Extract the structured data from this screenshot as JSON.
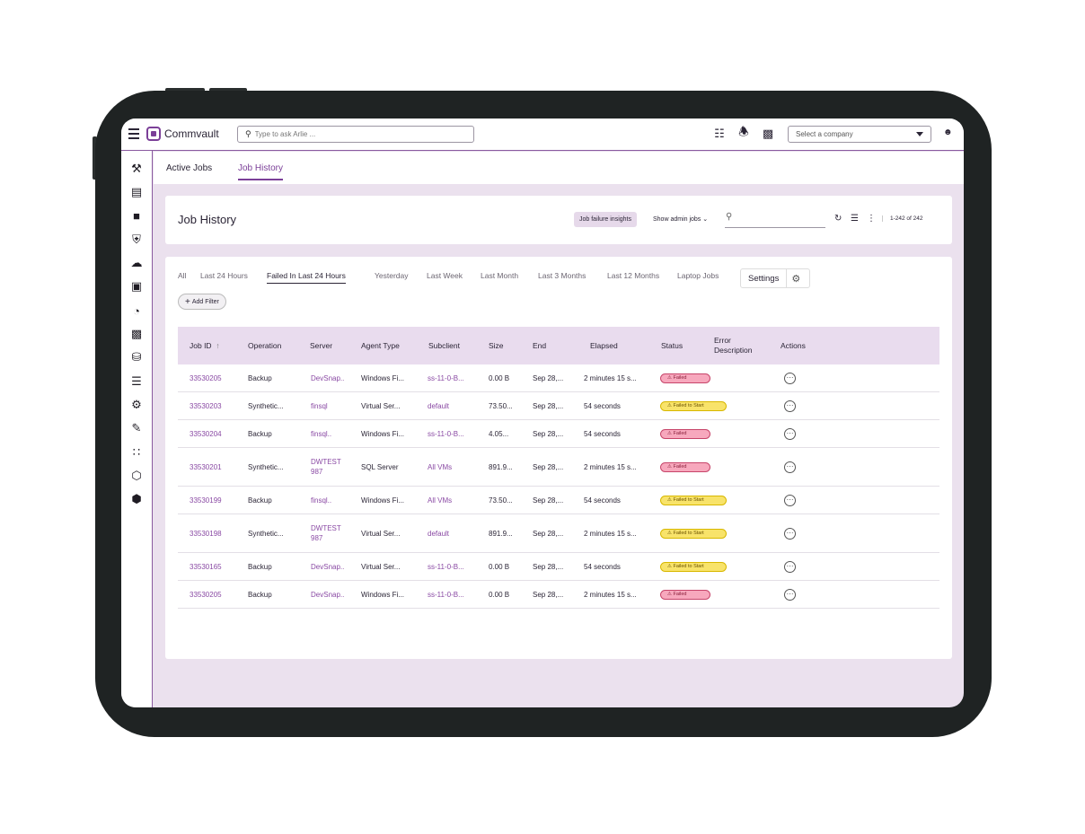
{
  "topbar": {
    "app_name": "Commvault",
    "search_placeholder": "Type to ask Arlie ...",
    "company_placeholder": "Select a company"
  },
  "subnav": {
    "tabs": [
      "Active Jobs",
      "Job History"
    ]
  },
  "header": {
    "title": "Job History",
    "insights_label": "Job failure insights",
    "admin_label": "Show admin jobs",
    "count_label": "1-242 of 242"
  },
  "filters": {
    "tabs": [
      "All",
      "Last 24 Hours",
      "Failed In Last 24 Hours",
      "Yesterday",
      "Last Week",
      "Last Month",
      "Last 3 Months",
      "Last 12 Months",
      "Laptop Jobs"
    ],
    "settings_label": "Settings",
    "add_filter_label": "Add Filter"
  },
  "table": {
    "columns": [
      "Job ID",
      "Operation",
      "Server",
      "Agent Type",
      "Subclient",
      "Size",
      "End",
      "Elapsed",
      "Status",
      "Error Description",
      "Actions"
    ],
    "rows": [
      {
        "job_id": "33530205",
        "operation": "Backup",
        "server": "DevSnap..",
        "agent_type": "Windows Fi...",
        "subclient": "ss-11-0-B...",
        "size": "0.00 B",
        "end": "Sep 28,...",
        "elapsed": "2 minutes 15 s...",
        "status": "Failed"
      },
      {
        "job_id": "33530203",
        "operation": "Synthetic...",
        "server": "finsql",
        "agent_type": "Virtual Ser...",
        "subclient": "default",
        "size": "73.50...",
        "end": "Sep 28,...",
        "elapsed": "54 seconds",
        "status": "Failed to Start"
      },
      {
        "job_id": "33530204",
        "operation": "Backup",
        "server": "finsql..",
        "agent_type": "Windows Fi...",
        "subclient": "ss-11-0-B...",
        "size": "4.05...",
        "end": "Sep 28,...",
        "elapsed": "54 seconds",
        "status": "Failed"
      },
      {
        "job_id": "33530201",
        "operation": "Synthetic...",
        "server": "DWTEST 987",
        "agent_type": "SQL Server",
        "subclient": "All VMs",
        "size": "891.9...",
        "end": "Sep 28,...",
        "elapsed": "2 minutes 15 s...",
        "status": "Failed"
      },
      {
        "job_id": "33530199",
        "operation": "Backup",
        "server": "finsql..",
        "agent_type": "Windows Fi...",
        "subclient": "All VMs",
        "size": "73.50...",
        "end": "Sep 28,...",
        "elapsed": "54 seconds",
        "status": "Failed to Start"
      },
      {
        "job_id": "33530198",
        "operation": "Synthetic...",
        "server": "DWTEST 987",
        "agent_type": "Virtual Ser...",
        "subclient": "default",
        "size": "891.9...",
        "end": "Sep 28,...",
        "elapsed": "2 minutes 15 s...",
        "status": "Failed to Start"
      },
      {
        "job_id": "33530165",
        "operation": "Backup",
        "server": "DevSnap..",
        "agent_type": "Virtual Ser...",
        "subclient": "ss-11-0-B...",
        "size": "0.00 B",
        "end": "Sep 28,...",
        "elapsed": "54 seconds",
        "status": "Failed to Start"
      },
      {
        "job_id": "33530205",
        "operation": "Backup",
        "server": "DevSnap..",
        "agent_type": "Windows Fi...",
        "subclient": "ss-11-0-B...",
        "size": "0.00 B",
        "end": "Sep 28,...",
        "elapsed": "2 minutes 15 s...",
        "status": "Failed"
      }
    ]
  },
  "icons": {
    "sidebar": [
      "tools-icon",
      "reports-icon",
      "protect-icon",
      "security-shield-icon",
      "cloud-icon",
      "briefcase-icon",
      "dashboard-icon",
      "monitor-icon",
      "database-icon",
      "sliders-icon",
      "gear-icon",
      "notes-icon",
      "apps-grid-icon",
      "cube-icon",
      "hexagon-icon"
    ],
    "topbar": [
      "server-icon",
      "bell-icon",
      "panel-icon",
      "user-icon"
    ]
  },
  "colors": {
    "accent": "#7b3f98",
    "background": "#ebe1ee",
    "failed_badge": "#f7a8bd",
    "failed_to_start_badge": "#f8e36a"
  }
}
